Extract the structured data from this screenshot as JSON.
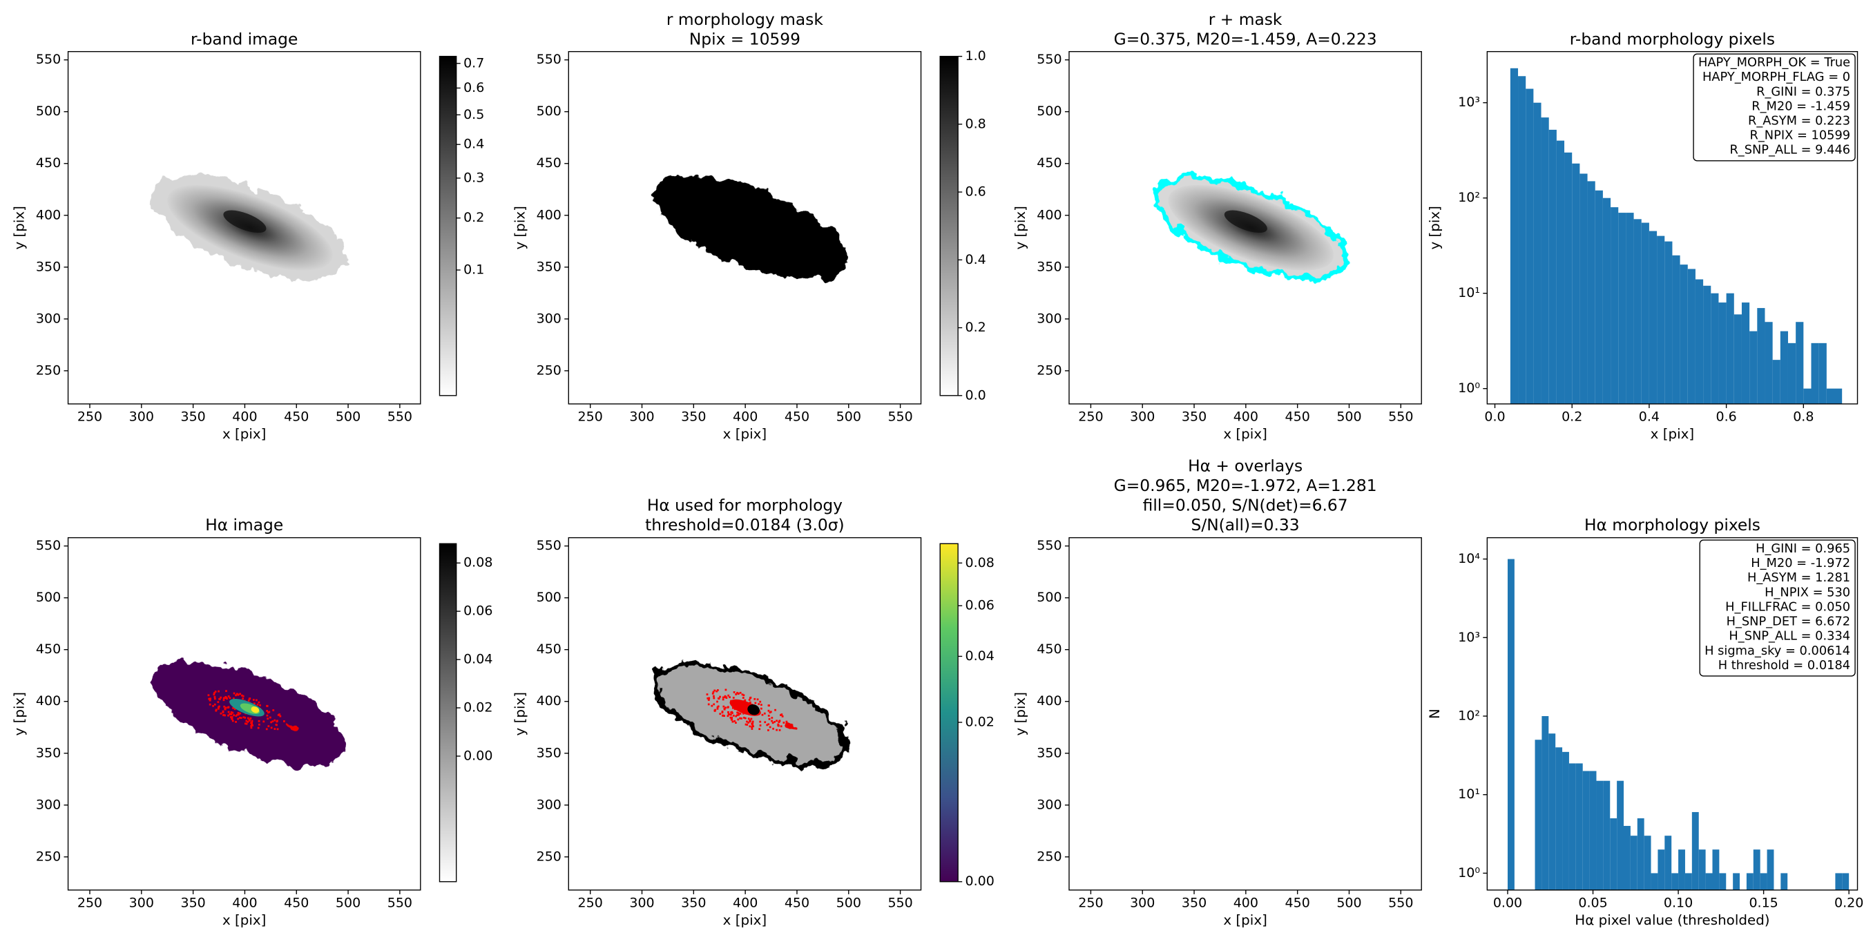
{
  "chart_data": [
    {
      "type": "image",
      "title": [
        "r-band image"
      ],
      "xlabel": "x [pix]",
      "ylabel": "y [pix]",
      "xlim": [
        229,
        570
      ],
      "ylim": [
        218,
        558
      ],
      "xticks": [
        250,
        300,
        350,
        400,
        450,
        500,
        550
      ],
      "yticks": [
        250,
        300,
        350,
        400,
        450,
        500,
        550
      ],
      "cmap": "gray_r",
      "colorbar": {
        "cmap": "gray_r",
        "scale": "sqrt",
        "lim": [
          0,
          0.73
        ],
        "ticks": [
          0.1,
          0.2,
          0.3,
          0.4,
          0.5,
          0.6,
          0.7
        ]
      }
    },
    {
      "type": "image",
      "title": [
        "r morphology mask",
        "Npix = 10599"
      ],
      "xlabel": "x [pix]",
      "ylabel": "y [pix]",
      "xlim": [
        229,
        570
      ],
      "ylim": [
        218,
        558
      ],
      "xticks": [
        250,
        300,
        350,
        400,
        450,
        500,
        550
      ],
      "yticks": [
        250,
        300,
        350,
        400,
        450,
        500,
        550
      ],
      "cmap": "gray_r",
      "colorbar": {
        "cmap": "gray_r",
        "scale": "linear",
        "lim": [
          0,
          1
        ],
        "ticks": [
          {
            "value": 0,
            "label": "0.0"
          },
          0.2,
          0.4,
          0.6,
          0.8,
          {
            "value": 1,
            "label": "1.0"
          }
        ]
      }
    },
    {
      "type": "image",
      "title": [
        "r + mask",
        "G=0.375, M20=-1.459, A=0.223"
      ],
      "xlabel": "x [pix]",
      "ylabel": "y [pix]",
      "xlim": [
        229,
        570
      ],
      "ylim": [
        218,
        558
      ],
      "xticks": [
        250,
        300,
        350,
        400,
        450,
        500,
        550
      ],
      "yticks": [
        250,
        300,
        350,
        400,
        450,
        500,
        550
      ],
      "cmap": "gray_r",
      "overlay_color": "#00ffff"
    },
    {
      "type": "histogram",
      "title": [
        "r-band morphology pixels"
      ],
      "xlabel": "x [pix]",
      "ylabel": "y [pix]",
      "color": "#1f77b4",
      "log_y": true,
      "xlim": [
        -0.02,
        0.94
      ],
      "ylim": [
        0.69,
        3440
      ],
      "xticks": [
        {
          "value": 0,
          "label": "0.0"
        },
        0.2,
        0.4,
        0.6,
        0.8
      ],
      "yticks": [
        {
          "value": 1,
          "label": "10⁰"
        },
        {
          "value": 10,
          "label": "10¹"
        },
        {
          "value": 100,
          "label": "10²"
        },
        {
          "value": 1000,
          "label": "10³"
        }
      ],
      "bins": [
        0.04,
        0.06,
        0.08,
        0.1,
        0.12,
        0.14,
        0.16,
        0.18,
        0.2,
        0.22,
        0.24,
        0.26,
        0.28,
        0.3,
        0.32,
        0.34,
        0.36,
        0.38,
        0.4,
        0.42,
        0.44,
        0.46,
        0.48,
        0.5,
        0.52,
        0.54,
        0.56,
        0.58,
        0.6,
        0.62,
        0.64,
        0.66,
        0.68,
        0.7,
        0.72,
        0.74,
        0.76,
        0.78,
        0.8,
        0.82,
        0.84,
        0.86,
        0.88,
        0.9
      ],
      "values": [
        2300,
        1900,
        1400,
        1000,
        700,
        520,
        400,
        300,
        230,
        180,
        150,
        120,
        100,
        80,
        70,
        70,
        60,
        55,
        45,
        40,
        35,
        25,
        20,
        18,
        14,
        12,
        10,
        8,
        10,
        6,
        8,
        4,
        7,
        5,
        2,
        4,
        3,
        5,
        1,
        3,
        3,
        1,
        1
      ],
      "annotation": [
        "HAPY_MORPH_OK = True",
        "HAPY_MORPH_FLAG = 0",
        "R_GINI = 0.375",
        "R_M20 = -1.459",
        "R_ASYM = 0.223",
        "R_NPIX = 10599",
        "R_SNP_ALL = 9.446"
      ]
    },
    {
      "type": "image",
      "title": [
        "Hα image"
      ],
      "xlabel": "x [pix]",
      "ylabel": "y [pix]",
      "xlim": [
        229,
        570
      ],
      "ylim": [
        218,
        558
      ],
      "xticks": [
        250,
        300,
        350,
        400,
        450,
        500,
        550
      ],
      "yticks": [
        250,
        300,
        350,
        400,
        450,
        500,
        550
      ],
      "cmap": "gray_r",
      "colorbar": {
        "cmap": "gray_r",
        "scale": "linear",
        "lim": [
          -0.052,
          0.088
        ],
        "ticks": [
          {
            "value": 0,
            "label": "0.00"
          },
          0.02,
          0.04,
          0.06,
          0.08
        ]
      }
    },
    {
      "type": "image",
      "title": [
        "Hα used for morphology",
        "threshold=0.0184 (3.0σ)"
      ],
      "xlabel": "x [pix]",
      "ylabel": "y [pix]",
      "xlim": [
        229,
        570
      ],
      "ylim": [
        218,
        558
      ],
      "xticks": [
        250,
        300,
        350,
        400,
        450,
        500,
        550
      ],
      "yticks": [
        250,
        300,
        350,
        400,
        450,
        500,
        550
      ],
      "cmap": "viridis",
      "colorbar": {
        "cmap": "viridis",
        "scale": "sqrt",
        "lim": [
          0,
          0.09
        ],
        "ticks": [
          {
            "value": 0,
            "label": "0.00"
          },
          0.02,
          0.04,
          0.06,
          0.08
        ]
      }
    },
    {
      "type": "image",
      "title": [
        "Hα + overlays",
        "G=0.965, M20=-1.972, A=1.281",
        "fill=0.050, S/N(det)=6.67",
        "S/N(all)=0.33"
      ],
      "xlabel": "x [pix]",
      "ylabel": "y [pix]",
      "xlim": [
        229,
        570
      ],
      "ylim": [
        218,
        558
      ],
      "xticks": [
        250,
        300,
        350,
        400,
        450,
        500,
        550
      ],
      "yticks": [
        250,
        300,
        350,
        400,
        450,
        500,
        550
      ],
      "cmap": "gray_r",
      "overlay_color": "#40e0e0"
    },
    {
      "type": "histogram",
      "title": [
        "Hα morphology pixels"
      ],
      "xlabel": "Hα pixel value (thresholded)",
      "ylabel": "N",
      "color": "#1f77b4",
      "log_y": true,
      "xlim": [
        -0.012,
        0.205
      ],
      "ylim": [
        0.61,
        18700
      ],
      "xticks": [
        {
          "value": 0,
          "label": "0.00"
        },
        0.05,
        {
          "value": 0.1,
          "label": "0.10"
        },
        0.15,
        {
          "value": 0.2,
          "label": "0.20"
        }
      ],
      "yticks": [
        {
          "value": 1,
          "label": "10⁰"
        },
        {
          "value": 10,
          "label": "10¹"
        },
        {
          "value": 100,
          "label": "10²"
        },
        {
          "value": 1000,
          "label": "10³"
        },
        {
          "value": 10000,
          "label": "10⁴"
        }
      ],
      "bins": [
        0,
        0.004,
        0.008,
        0.012,
        0.016,
        0.02,
        0.024,
        0.028,
        0.032,
        0.036,
        0.04,
        0.044,
        0.048,
        0.052,
        0.056,
        0.06,
        0.064,
        0.068,
        0.072,
        0.076,
        0.08,
        0.084,
        0.088,
        0.092,
        0.096,
        0.1,
        0.104,
        0.108,
        0.112,
        0.116,
        0.12,
        0.124,
        0.128,
        0.132,
        0.136,
        0.14,
        0.144,
        0.148,
        0.152,
        0.156,
        0.16,
        0.164,
        0.168,
        0.172,
        0.176,
        0.18,
        0.184,
        0.188,
        0.192,
        0.196,
        0.2
      ],
      "values": [
        10000,
        0,
        0,
        0,
        50,
        100,
        60,
        40,
        35,
        25,
        25,
        20,
        20,
        15,
        15,
        5,
        15,
        4,
        3,
        5,
        3,
        1,
        2,
        3,
        1,
        2,
        1,
        6,
        2,
        1,
        2,
        1,
        0,
        1,
        0,
        1,
        2,
        1,
        2,
        0,
        1,
        0,
        0,
        0,
        0,
        0,
        0,
        0,
        1,
        1
      ],
      "annotation": [
        "H_GINI = 0.965",
        "H_M20 = -1.972",
        "H_ASYM = 1.281",
        "H_NPIX = 530",
        "H_FILLFRAC = 0.050",
        "H_SNP_DET = 6.672",
        "H_SNP_ALL = 0.334",
        "H sigma_sky = 0.00614",
        "H threshold = 0.0184"
      ]
    }
  ]
}
